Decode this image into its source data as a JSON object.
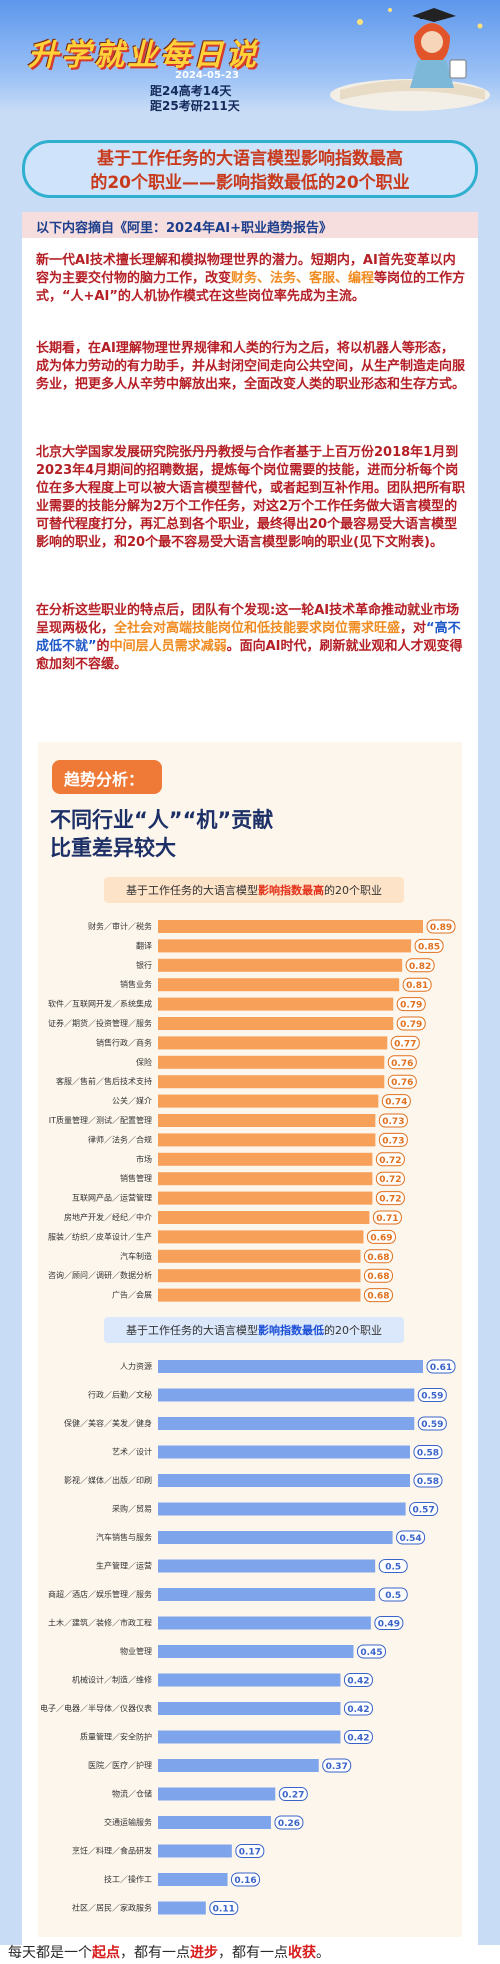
{
  "header": {
    "title": "升学就业每日说",
    "date": "2024-05-23",
    "countdown_gaokao": "距24高考14天",
    "countdown_kaoyan": "距25考研211天"
  },
  "article_title": {
    "line1": "基于工作任务的大语言模型影响指数最高",
    "line2": "的20个职业——影响指数最低的20个职业"
  },
  "source": "以下内容摘自《阿里：2024年AI+职业趋势报告》",
  "paragraphs": {
    "p1_a": "新一代AI技术擅长理解和模拟物理世界的潜力。短期内，AI首先变革以内容为主要交付物的脑力工作，改变",
    "p1_hl": "财务、法务、客服、编程",
    "p1_b": "等岗位的工作方式，“人+AI”的人机协作模式在这些岗位率先成为主流。",
    "p2": "长期看，在AI理解物理世界规律和人类的行为之后，将以机器人等形态，成为体力劳动的有力助手，并从封闭空间走向公共空间，从生产制造走向服务业，把更多人从辛劳中解放出来，全面改变人类的职业形态和生存方式。",
    "p3": "北京大学国家发展研究院张丹丹教授与合作者基于上百万份2018年1月到2023年4月期间的招聘数据，提炼每个岗位需要的技能，进而分析每个岗位在多大程度上可以被大语言模型替代，或者起到互补作用。团队把所有职业需要的技能分解为2万个工作任务，对这2万个工作任务做大语言模型的可替代程度打分，再汇总到各个职业，最终得出20个最容易受大语言模型影响的职业，和20个最不容易受大语言模型影响的职业(见下文附表)。",
    "p4_a": "在分析这些职业的特点后，团队有个发现:这一轮AI技术革命推动就业市场呈现两极化，",
    "p4_hl1": "全社会对高端技能岗位和低技能要求岗位需求旺盛",
    "p4_b": "，对",
    "p4_hl2": "“高不成低不就”",
    "p4_c": "的",
    "p4_hl3": "中间层人员需求减弱",
    "p4_d": "。面向AI时代，刷新就业观和人才观变得愈加刻不容缓。"
  },
  "trend": {
    "badge": "趋势分析：",
    "subtitle1": "不同行业“人”“机”贡献",
    "subtitle2": "比重差异较大"
  },
  "chart_data": [
    {
      "type": "bar",
      "title_a": "基于工作任务的大语言模型",
      "title_hl": "影响指数最高",
      "title_b": "的20个职业",
      "bar_color": "#f7a05a",
      "label_color": "#e0701e",
      "categories": [
        "财务／审计／税务",
        "翻译",
        "银行",
        "销售业务",
        "软件／互联网开发／系统集成",
        "证券／期货／投资管理／服务",
        "销售行政／商务",
        "保险",
        "客服／售前／售后技术支持",
        "公关／媒介",
        "IT质量管理／测试／配置管理",
        "律师／法务／合规",
        "市场",
        "销售管理",
        "互联网产品／运营管理",
        "房地产开发／经纪／中介",
        "服装／纺织／皮革设计／生产",
        "汽车制造",
        "咨询／顾问／调研／数据分析",
        "广告／会展"
      ],
      "values": [
        0.89,
        0.85,
        0.82,
        0.81,
        0.79,
        0.79,
        0.77,
        0.76,
        0.76,
        0.74,
        0.73,
        0.73,
        0.72,
        0.72,
        0.72,
        0.71,
        0.69,
        0.68,
        0.68,
        0.68
      ],
      "value_labels": [
        "0.89",
        "0.85",
        "0.82",
        "0.81",
        "0.79",
        "0.79",
        "0.77",
        "0.76",
        "0.76",
        "0.74",
        "0.73",
        "0.73",
        "0.72",
        "0.72",
        "0.72",
        "0.71",
        "0.69",
        "0.68",
        "0.68",
        "0.68"
      ]
    },
    {
      "type": "bar",
      "title_a": "基于工作任务的大语言模型",
      "title_hl": "影响指数最低",
      "title_b": "的20个职业",
      "bar_color": "#7ea4ec",
      "label_color": "#3a63c8",
      "categories": [
        "人力资源",
        "行政／后勤／文秘",
        "保健／美容／美发／健身",
        "艺术／设计",
        "影视／媒体／出版／印刷",
        "采购／贸易",
        "汽车销售与服务",
        "生产管理／运营",
        "商超／酒店／娱乐管理／服务",
        "土木／建筑／装修／市政工程",
        "物业管理",
        "机械设计／制造／维修",
        "电子／电器／半导体／仪器仪表",
        "质量管理／安全防护",
        "医院／医疗／护理",
        "物流／仓储",
        "交通运输服务",
        "烹饪／料理／食品研发",
        "技工／操作工",
        "社区／居民／家政服务"
      ],
      "values": [
        0.61,
        0.59,
        0.59,
        0.58,
        0.58,
        0.57,
        0.54,
        0.5,
        0.5,
        0.49,
        0.45,
        0.42,
        0.42,
        0.42,
        0.37,
        0.27,
        0.26,
        0.17,
        0.16,
        0.11
      ],
      "value_labels": [
        "0.61",
        "0.59",
        "0.59",
        "0.58",
        "0.58",
        "0.57",
        "0.54",
        "0.5",
        "0.5",
        "0.49",
        "0.45",
        "0.42",
        "0.42",
        "0.42",
        "0.37",
        "0.27",
        "0.26",
        "0.17",
        "0.16",
        "0.11"
      ]
    }
  ],
  "footer": {
    "p1": "每天都是一个",
    "k1": "起点",
    "p2": "，都有一点",
    "k2": "进步",
    "p3": "，都有一点",
    "k3": "收获",
    "p4": "。"
  },
  "colors": {
    "accent_red": "#b41e24",
    "highlight_orange": "#f08b20",
    "highlight_blue": "#1c57c9",
    "badge": "#ef7a37"
  }
}
